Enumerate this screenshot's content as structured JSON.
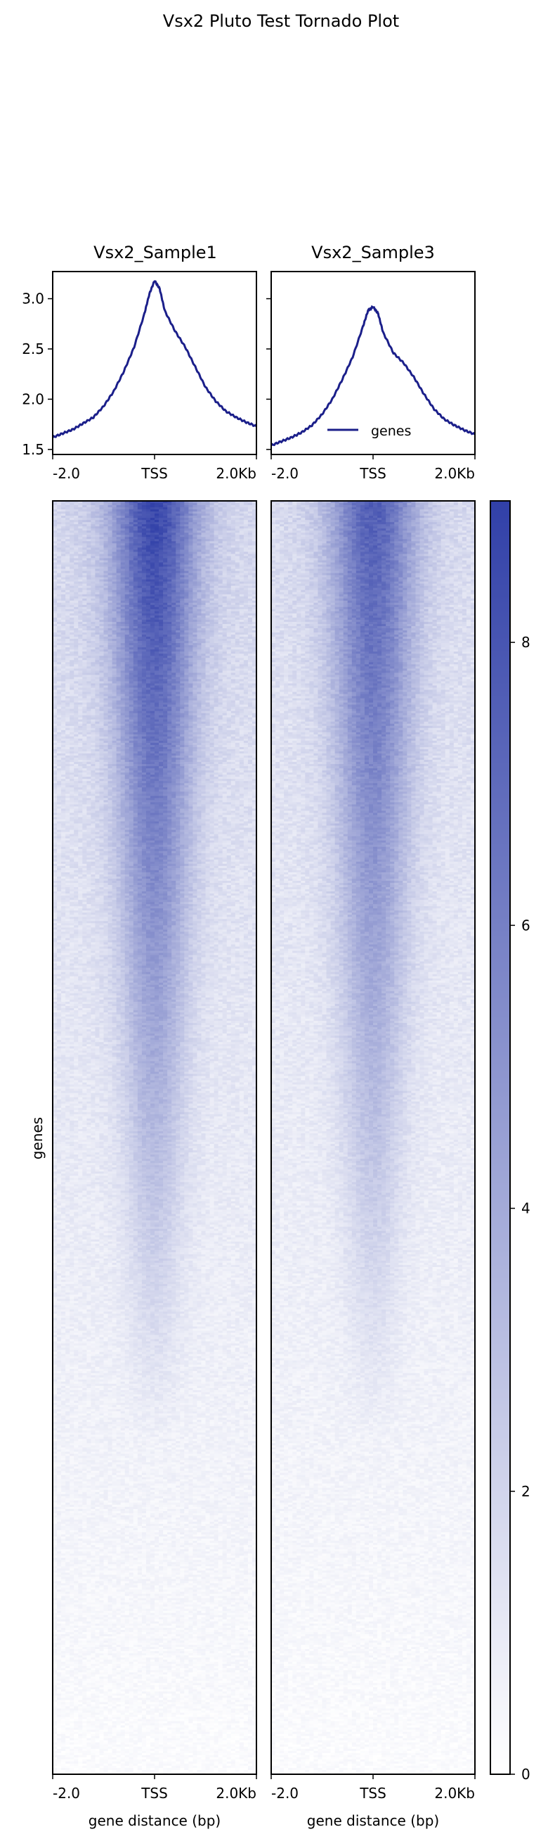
{
  "title": "Vsx2 Pluto Test Tornado Plot",
  "chart_data": [
    {
      "type": "line",
      "panel": "profile",
      "title": "Vsx2_Sample1",
      "x": [
        -2000,
        -1800,
        -1600,
        -1400,
        -1200,
        -1000,
        -800,
        -600,
        -400,
        -200,
        -100,
        0,
        100,
        200,
        400,
        600,
        800,
        1000,
        1200,
        1400,
        1600,
        1800,
        2000
      ],
      "series": [
        {
          "values": [
            1.62,
            1.66,
            1.7,
            1.76,
            1.82,
            1.93,
            2.08,
            2.28,
            2.52,
            2.85,
            3.05,
            3.18,
            3.1,
            2.88,
            2.68,
            2.52,
            2.32,
            2.12,
            1.98,
            1.88,
            1.82,
            1.77,
            1.73
          ]
        }
      ],
      "color": "#1b1f8a",
      "xticks": [
        "-2.0",
        "TSS",
        "2.0Kb"
      ],
      "yticks": [
        "1.5",
        "2.0",
        "2.5",
        "3.0"
      ],
      "ylim": [
        1.45,
        3.27
      ]
    },
    {
      "type": "line",
      "panel": "profile",
      "title": "Vsx2_Sample3",
      "x": [
        -2000,
        -1800,
        -1600,
        -1400,
        -1200,
        -1000,
        -800,
        -600,
        -400,
        -200,
        -100,
        0,
        100,
        200,
        400,
        600,
        800,
        1000,
        1200,
        1400,
        1600,
        1800,
        2000
      ],
      "series": [
        {
          "name": "genes",
          "values": [
            1.54,
            1.58,
            1.62,
            1.67,
            1.74,
            1.85,
            2.0,
            2.2,
            2.42,
            2.72,
            2.88,
            2.92,
            2.85,
            2.66,
            2.46,
            2.36,
            2.22,
            2.05,
            1.9,
            1.8,
            1.74,
            1.69,
            1.65
          ]
        }
      ],
      "color": "#1b1f8a",
      "legend": {
        "placement": "lower-right",
        "entries": [
          "genes"
        ]
      },
      "xticks": [
        "-2.0",
        "TSS",
        "2.0Kb"
      ],
      "ylim": [
        1.45,
        3.27
      ]
    },
    {
      "type": "heatmap",
      "title": "",
      "panels": [
        "Vsx2_Sample1",
        "Vsx2_Sample3"
      ],
      "ylabel": "genes",
      "xlabel": "gene distance (bp)",
      "xticks": [
        "-2.0",
        "TSS",
        "2.0Kb"
      ],
      "rows": 600,
      "cols": 48,
      "center_intensity": [
        6.8,
        5.9
      ],
      "flank_intensity": [
        1.4,
        1.2
      ],
      "colormap": [
        "#ffffff",
        "#3140a8"
      ],
      "colorbar": {
        "min": 0,
        "max": 9,
        "ticks": [
          "0",
          "2",
          "4",
          "6",
          "8"
        ]
      }
    }
  ]
}
